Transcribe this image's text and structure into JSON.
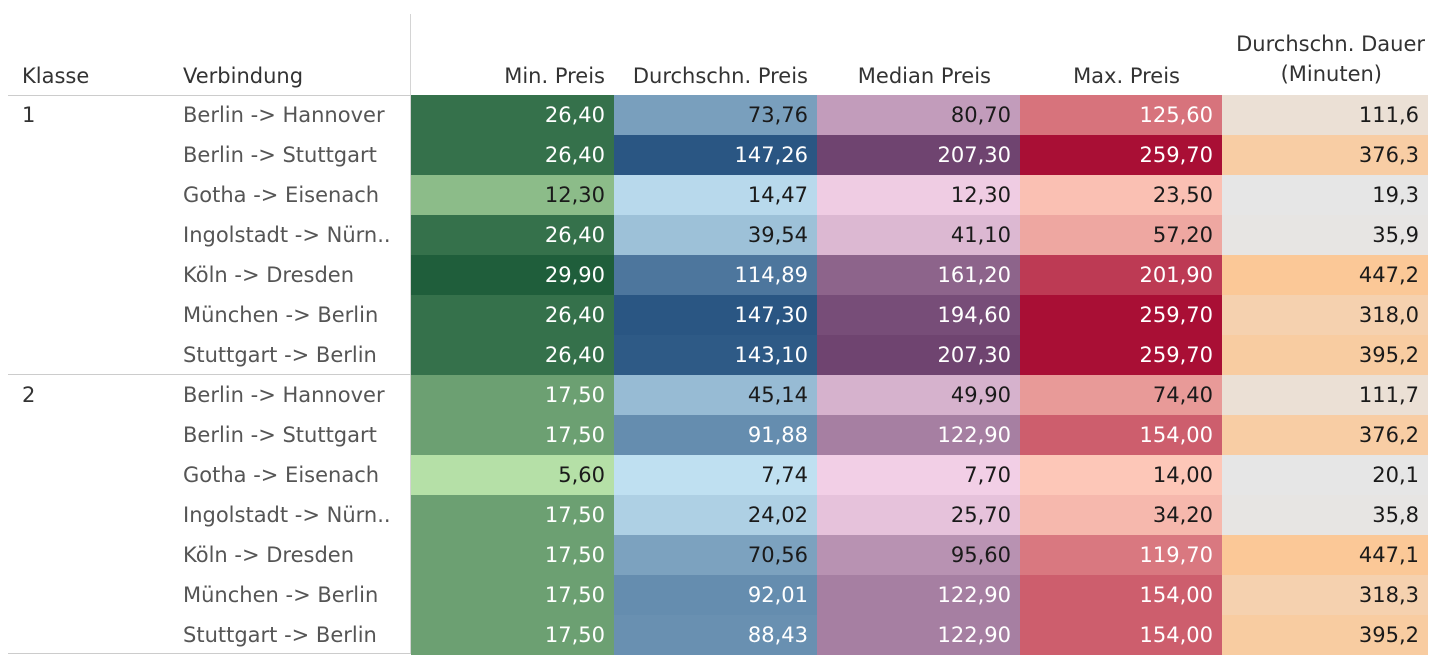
{
  "columns": {
    "klasse": "Klasse",
    "verbindung": "Verbindung",
    "min": "Min. Preis",
    "avg": "Durchschn. Preis",
    "median": "Median Preis",
    "max": "Max. Preis",
    "dauer_line1": "Durchschn. Dauer",
    "dauer_line2": "(Minuten)"
  },
  "colors": {
    "min_scale": [
      "#b5e0a7",
      "#1f5e3b"
    ],
    "avg_scale": [
      "#bfe0f1",
      "#2a5683"
    ],
    "median_scale": [
      "#f2cfe6",
      "#6f4470"
    ],
    "max_scale": [
      "#fdc7b8",
      "#a90f35"
    ],
    "dauer_scale": [
      "#e6e6e6",
      "#fbc897"
    ]
  },
  "chart_data": {
    "type": "table",
    "groups": [
      {
        "klasse": "1",
        "rows": [
          {
            "verbindung": "Berlin -> Hannover",
            "min": "26,40",
            "avg": "73,76",
            "median": "80,70",
            "max": "125,60",
            "dauer": "111,6"
          },
          {
            "verbindung": "Berlin -> Stuttgart",
            "min": "26,40",
            "avg": "147,26",
            "median": "207,30",
            "max": "259,70",
            "dauer": "376,3"
          },
          {
            "verbindung": "Gotha -> Eisenach",
            "min": "12,30",
            "avg": "14,47",
            "median": "12,30",
            "max": "23,50",
            "dauer": "19,3"
          },
          {
            "verbindung": "Ingolstadt -> Nürn..",
            "min": "26,40",
            "avg": "39,54",
            "median": "41,10",
            "max": "57,20",
            "dauer": "35,9"
          },
          {
            "verbindung": "Köln -> Dresden",
            "min": "29,90",
            "avg": "114,89",
            "median": "161,20",
            "max": "201,90",
            "dauer": "447,2"
          },
          {
            "verbindung": "München -> Berlin",
            "min": "26,40",
            "avg": "147,30",
            "median": "194,60",
            "max": "259,70",
            "dauer": "318,0"
          },
          {
            "verbindung": "Stuttgart -> Berlin",
            "min": "26,40",
            "avg": "143,10",
            "median": "207,30",
            "max": "259,70",
            "dauer": "395,2"
          }
        ]
      },
      {
        "klasse": "2",
        "rows": [
          {
            "verbindung": "Berlin -> Hannover",
            "min": "17,50",
            "avg": "45,14",
            "median": "49,90",
            "max": "74,40",
            "dauer": "111,7"
          },
          {
            "verbindung": "Berlin -> Stuttgart",
            "min": "17,50",
            "avg": "91,88",
            "median": "122,90",
            "max": "154,00",
            "dauer": "376,2"
          },
          {
            "verbindung": "Gotha -> Eisenach",
            "min": "5,60",
            "avg": "7,74",
            "median": "7,70",
            "max": "14,00",
            "dauer": "20,1"
          },
          {
            "verbindung": "Ingolstadt -> Nürn..",
            "min": "17,50",
            "avg": "24,02",
            "median": "25,70",
            "max": "34,20",
            "dauer": "35,8"
          },
          {
            "verbindung": "Köln -> Dresden",
            "min": "17,50",
            "avg": "70,56",
            "median": "95,60",
            "max": "119,70",
            "dauer": "447,1"
          },
          {
            "verbindung": "München -> Berlin",
            "min": "17,50",
            "avg": "92,01",
            "median": "122,90",
            "max": "154,00",
            "dauer": "318,3"
          },
          {
            "verbindung": "Stuttgart -> Berlin",
            "min": "17,50",
            "avg": "88,43",
            "median": "122,90",
            "max": "154,00",
            "dauer": "395,2"
          }
        ]
      }
    ]
  }
}
